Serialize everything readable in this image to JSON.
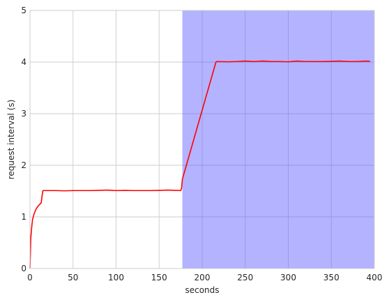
{
  "chart_data": {
    "type": "line",
    "title": "",
    "xlabel": "seconds",
    "ylabel": "request interval (s)",
    "xlim": [
      0,
      400
    ],
    "ylim": [
      0,
      5
    ],
    "xticks": [
      0,
      50,
      100,
      150,
      200,
      250,
      300,
      350,
      400
    ],
    "yticks": [
      0,
      1,
      2,
      3,
      4,
      5
    ],
    "grid": true,
    "legend": "none",
    "colors": {
      "line": "#ff0000",
      "shade": "#b3b3ff",
      "grid": "#cccccc",
      "frame": "#cccccc"
    },
    "shaded_region": {
      "x_start": 177,
      "x_end": 400
    },
    "series": [
      {
        "x": [
          0,
          1,
          2,
          3,
          5,
          7,
          9,
          11,
          13,
          14,
          15,
          20,
          30,
          40,
          50,
          60,
          70,
          80,
          90,
          95,
          100,
          110,
          120,
          130,
          140,
          150,
          160,
          170,
          175,
          176,
          177,
          216,
          217,
          230,
          240,
          250,
          260,
          270,
          280,
          290,
          300,
          310,
          320,
          330,
          340,
          350,
          360,
          370,
          380,
          390,
          395
        ],
        "y": [
          0.0,
          0.6,
          0.8,
          0.95,
          1.07,
          1.15,
          1.2,
          1.24,
          1.27,
          1.4,
          1.51,
          1.51,
          1.51,
          1.505,
          1.51,
          1.51,
          1.51,
          1.515,
          1.52,
          1.515,
          1.51,
          1.515,
          1.51,
          1.51,
          1.51,
          1.515,
          1.52,
          1.515,
          1.51,
          1.55,
          1.73,
          4.0,
          4.01,
          4.005,
          4.01,
          4.02,
          4.01,
          4.02,
          4.01,
          4.01,
          4.005,
          4.02,
          4.01,
          4.01,
          4.01,
          4.015,
          4.02,
          4.01,
          4.01,
          4.02,
          4.015
        ]
      }
    ]
  }
}
